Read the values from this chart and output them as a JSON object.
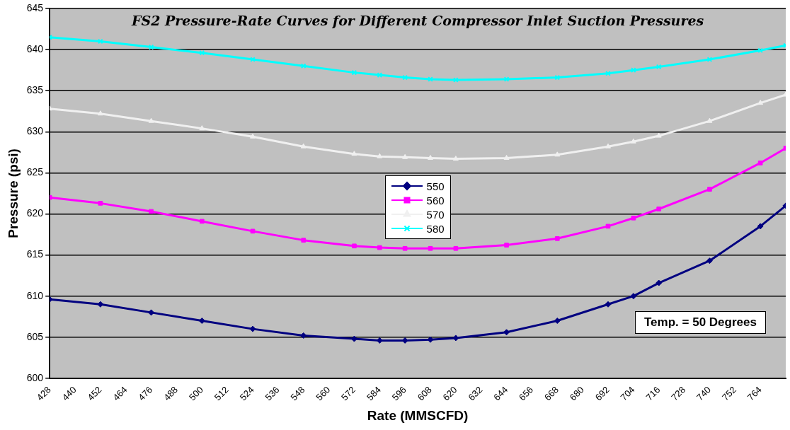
{
  "chart_data": {
    "type": "line",
    "title": "FS2 Pressure-Rate Curves for Different Compressor Inlet Suction Pressures",
    "xlabel": "Rate (MMSCFD)",
    "ylabel": "Pressure (psi)",
    "annotations": [
      "Temp. = 50 Degrees"
    ],
    "x": [
      428,
      452,
      476,
      500,
      524,
      548,
      572,
      584,
      596,
      608,
      620,
      644,
      668,
      692,
      704,
      716,
      740,
      764,
      776
    ],
    "series": [
      {
        "name": "550",
        "color": "#000080",
        "marker": "diamond",
        "values": [
          609.6,
          609.0,
          608.0,
          607.0,
          606.0,
          605.2,
          604.8,
          604.6,
          604.6,
          604.7,
          604.9,
          605.6,
          607.0,
          609.0,
          610.0,
          611.6,
          614.3,
          618.5,
          621.0
        ]
      },
      {
        "name": "560",
        "color": "#ff00ff",
        "marker": "square",
        "values": [
          622.0,
          621.3,
          620.3,
          619.1,
          617.9,
          616.8,
          616.1,
          615.9,
          615.8,
          615.8,
          615.8,
          616.2,
          617.0,
          618.5,
          619.5,
          620.6,
          623.0,
          626.2,
          628.0
        ]
      },
      {
        "name": "570",
        "color": "#f0f0f0",
        "marker": "triangle",
        "values": [
          632.8,
          632.2,
          631.3,
          630.4,
          629.4,
          628.2,
          627.3,
          627.0,
          626.9,
          626.8,
          626.7,
          626.8,
          627.2,
          628.2,
          628.8,
          629.5,
          631.3,
          633.5,
          634.5
        ]
      },
      {
        "name": "580",
        "color": "#00ffff",
        "marker": "cross",
        "values": [
          641.5,
          641.0,
          640.3,
          639.6,
          638.8,
          638.0,
          637.2,
          636.9,
          636.6,
          636.4,
          636.3,
          636.4,
          636.6,
          637.1,
          637.5,
          637.9,
          638.8,
          639.9,
          640.5
        ]
      }
    ],
    "xlim": [
      428,
      776
    ],
    "xticks": [
      428,
      440,
      452,
      464,
      476,
      488,
      500,
      512,
      524,
      536,
      548,
      560,
      572,
      584,
      596,
      608,
      620,
      632,
      644,
      656,
      668,
      680,
      692,
      704,
      716,
      728,
      740,
      752,
      764
    ],
    "ylim": [
      600,
      645
    ],
    "yticks": [
      600,
      605,
      610,
      615,
      620,
      625,
      630,
      635,
      640,
      645
    ],
    "grid": "y",
    "legend": "center",
    "line_style": "solid"
  }
}
